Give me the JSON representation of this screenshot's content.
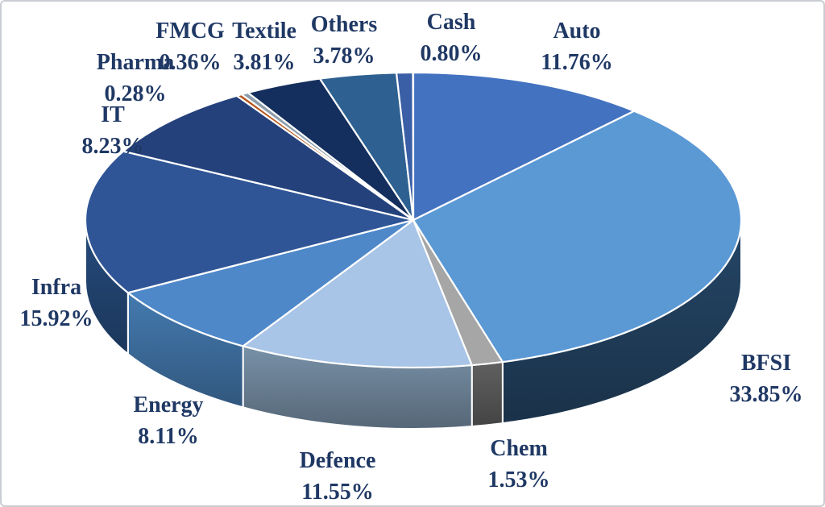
{
  "chart_data": {
    "type": "pie",
    "projection": "3d",
    "direction": "clockwise",
    "start_angle_deg": 0,
    "label_format": "name above percent, outside-end",
    "legend": "none",
    "background": "#FFFFFF",
    "frame_border_color": "#C9CDD3",
    "label_text_color": "#1F3864",
    "slice_separator_color": "#FFFFFF",
    "slices": [
      {
        "name": "Auto",
        "value": 11.76,
        "pct_label": "11.76%",
        "color": "#4372C0",
        "side_color": "#2F5086"
      },
      {
        "name": "BFSI",
        "value": 33.85,
        "pct_label": "33.85%",
        "color": "#5B99D5",
        "side_color": "#1F3B57"
      },
      {
        "name": "Chem",
        "value": 1.53,
        "pct_label": "1.53%",
        "color": "#A6A6A6",
        "side_color": "#515151"
      },
      {
        "name": "Defence",
        "value": 11.55,
        "pct_label": "11.55%",
        "color": "#A8C4E6",
        "side_color": "#667B8E"
      },
      {
        "name": "Energy",
        "value": 8.11,
        "pct_label": "8.11%",
        "color": "#4E88C9",
        "side_color": "#3A6795"
      },
      {
        "name": "Infra",
        "value": 15.92,
        "pct_label": "15.92%",
        "color": "#2F5597",
        "side_color": "#20406B"
      },
      {
        "name": "IT",
        "value": 8.23,
        "pct_label": "8.23%",
        "color": "#24417C",
        "side_color": "#16294F"
      },
      {
        "name": "Pharma",
        "value": 0.28,
        "pct_label": "0.28%",
        "color": "#B5561B",
        "side_color": "#7A3A12"
      },
      {
        "name": "FMCG",
        "value": 0.36,
        "pct_label": "0.36%",
        "color": "#8C9DAC",
        "side_color": "#5E6A75"
      },
      {
        "name": "Textile",
        "value": 3.81,
        "pct_label": "3.81%",
        "color": "#142F5E",
        "side_color": "#0C1D3A"
      },
      {
        "name": "Others",
        "value": 3.78,
        "pct_label": "3.78%",
        "color": "#2E6191",
        "side_color": "#1E405F"
      },
      {
        "name": "Cash",
        "value": 0.8,
        "pct_label": "0.80%",
        "color": "#3B5FA6",
        "side_color": "#27406F"
      }
    ]
  }
}
